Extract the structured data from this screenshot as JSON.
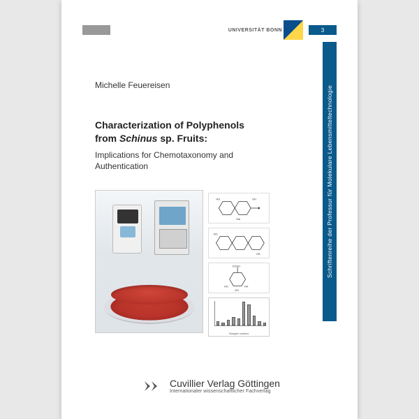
{
  "header": {
    "university": "UNIVERSITÄT BONN",
    "volume": "3"
  },
  "spine": {
    "text": "Schriftenreihe der Professur für Molekulare Lebensmitteltechnologie",
    "bg_color": "#0a5a8c"
  },
  "author": "Michelle Feuereisen",
  "title": {
    "line1": "Characterization of Polyphenols",
    "line2_pre": "from ",
    "line2_italic": "Schinus",
    "line2_post": " sp. Fruits:",
    "subtitle": "Implications for Chemotaxonomy and Authentication"
  },
  "chart": {
    "xlabel": "Sample number",
    "bars": [
      6,
      4,
      8,
      12,
      10,
      34,
      30,
      14,
      6,
      4
    ],
    "bar_color": "#999999",
    "axis_color": "#888888"
  },
  "publisher": {
    "name": "Cuvillier Verlag Göttingen",
    "tagline": "Internationaler wissenschaftlicher Fachverlag"
  },
  "colors": {
    "brand_blue": "#0a5a8c",
    "page_bg": "#ffffff",
    "outer_bg": "#e8e8e8"
  }
}
